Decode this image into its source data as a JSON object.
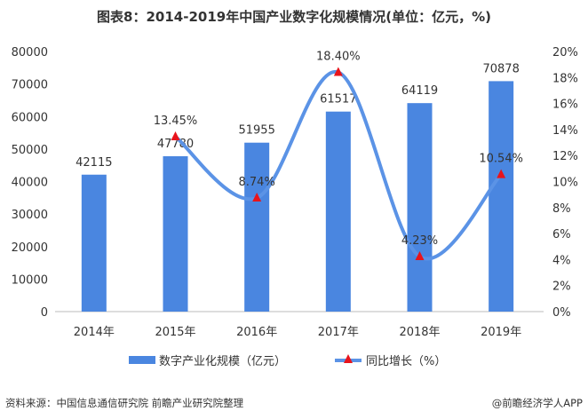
{
  "title": "图表8：2014-2019年中国产业数字化规模情况(单位：亿元，%)",
  "source": "资料来源：中国信息通信研究院 前瞻产业研究院整理",
  "credit": "@前瞻经济学人APP",
  "watermark": "前瞻产业研究院",
  "chart_data": {
    "type": "bar+line",
    "categories": [
      "2014年",
      "2015年",
      "2016年",
      "2017年",
      "2018年",
      "2019年"
    ],
    "series": [
      {
        "name": "数字产业化规模（亿元）",
        "type": "bar",
        "axis": "left",
        "color": "#4a86e0",
        "values": [
          42115,
          47780,
          51955,
          61517,
          64119,
          70878
        ],
        "labels": [
          "42115",
          "47780",
          "51955",
          "61517",
          "64119",
          "70878"
        ]
      },
      {
        "name": "同比增长（%）",
        "type": "line",
        "axis": "right",
        "color": "#5b93e6",
        "marker_color": "#e8141b",
        "values": [
          null,
          13.45,
          8.74,
          18.4,
          4.23,
          10.54
        ],
        "labels": [
          "",
          "13.45%",
          "8.74%",
          "18.40%",
          "4.23%",
          "10.54%"
        ]
      }
    ],
    "y_left": {
      "min": 0,
      "max": 80000,
      "ticks": [
        "0",
        "10000",
        "20000",
        "30000",
        "40000",
        "50000",
        "60000",
        "70000",
        "80000"
      ]
    },
    "y_right": {
      "min": 0,
      "max": 20,
      "ticks": [
        "0%",
        "2%",
        "4%",
        "6%",
        "8%",
        "10%",
        "12%",
        "14%",
        "16%",
        "18%",
        "20%"
      ]
    },
    "grid": false,
    "legend": "bottom"
  }
}
